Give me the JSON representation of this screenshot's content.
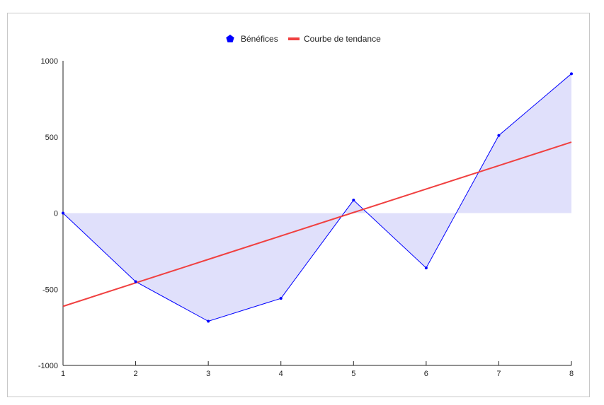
{
  "chart_data": {
    "type": "area",
    "x": [
      1,
      2,
      3,
      4,
      5,
      6,
      7,
      8
    ],
    "series": [
      {
        "name": "Bénéfices",
        "values": [
          0,
          -450,
          -710,
          -560,
          85,
          -360,
          510,
          915
        ],
        "color": "#0000ff",
        "fill": "#e0e0fb",
        "marker": "pentagon"
      },
      {
        "name": "Courbe de tendance",
        "kind": "trendline",
        "values": [
          -612,
          -458,
          -304,
          -150,
          4,
          158,
          312,
          466
        ],
        "color": "#f04040"
      }
    ],
    "xlim": [
      1,
      8
    ],
    "ylim": [
      -1000,
      1000
    ],
    "yticks": [
      -1000,
      -500,
      0,
      500,
      1000
    ],
    "xticks": [
      1,
      2,
      3,
      4,
      5,
      6,
      7,
      8
    ],
    "legend_position": "top-center",
    "grid": false,
    "title": "",
    "xlabel": "",
    "ylabel": ""
  }
}
